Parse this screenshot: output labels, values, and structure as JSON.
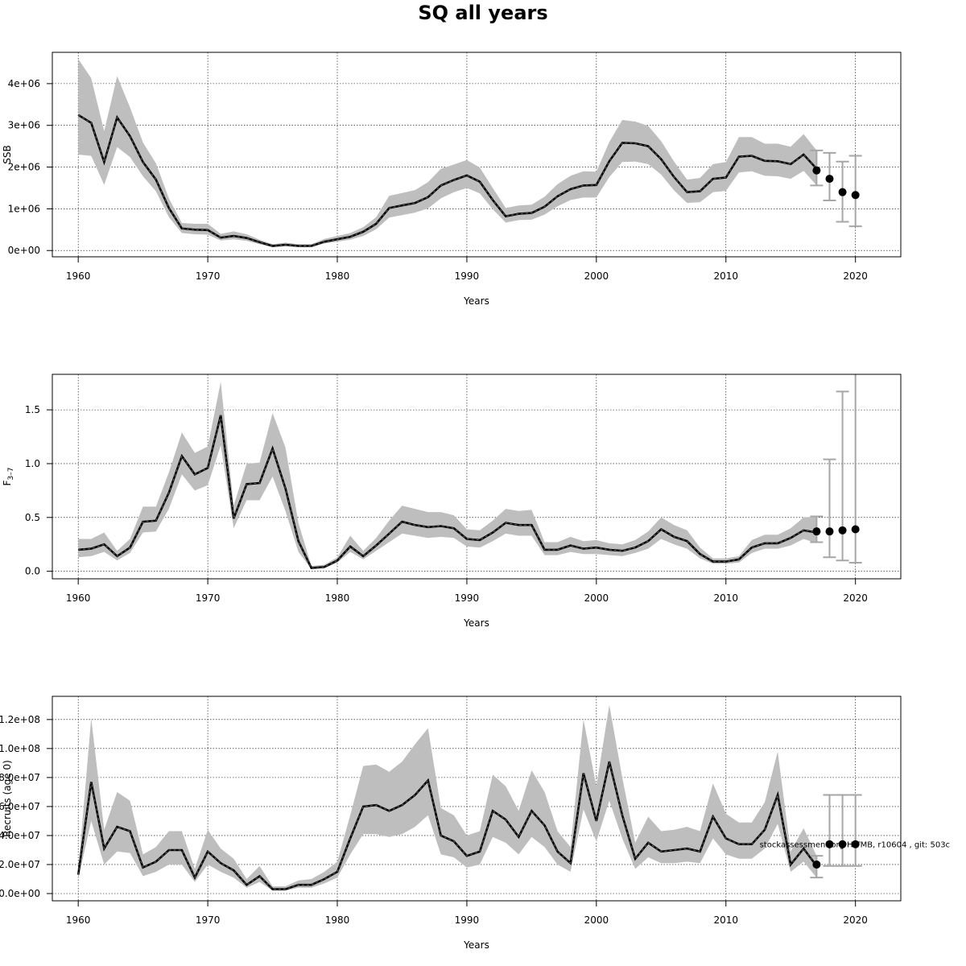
{
  "title": "SQ all years",
  "chart_data": [
    {
      "type": "line",
      "ylabel": "SSB",
      "xlabel": "Years",
      "xlim": [
        1958,
        2023.5
      ],
      "ylim": [
        -150000,
        4750000
      ],
      "x_ticks": [
        1960,
        1970,
        1980,
        1990,
        2000,
        2010,
        2020
      ],
      "x_tick_labels": [
        "1960",
        "1970",
        "1980",
        "1990",
        "2000",
        "2010",
        "2020"
      ],
      "y_ticks": [
        0,
        1000000,
        2000000,
        3000000,
        4000000
      ],
      "y_tick_labels": [
        "0e+00",
        "1e+06",
        "2e+06",
        "3e+06",
        "4e+06"
      ],
      "grid": true,
      "series": [
        {
          "name": "estimate",
          "x": [
            1960,
            1961,
            1962,
            1963,
            1964,
            1965,
            1966,
            1967,
            1968,
            1969,
            1970,
            1971,
            1972,
            1973,
            1974,
            1975,
            1976,
            1977,
            1978,
            1979,
            1980,
            1981,
            1982,
            1983,
            1984,
            1985,
            1986,
            1987,
            1988,
            1989,
            1990,
            1991,
            1992,
            1993,
            1994,
            1995,
            1996,
            1997,
            1998,
            1999,
            2000,
            2001,
            2002,
            2003,
            2004,
            2005,
            2006,
            2007,
            2008,
            2009,
            2010,
            2011,
            2012,
            2013,
            2014,
            2015,
            2016,
            2017
          ],
          "values": [
            3250000,
            3060000,
            2120000,
            3190000,
            2740000,
            2120000,
            1700000,
            1020000,
            530000,
            500000,
            490000,
            310000,
            350000,
            300000,
            200000,
            110000,
            140000,
            110000,
            110000,
            210000,
            270000,
            330000,
            450000,
            640000,
            1020000,
            1080000,
            1140000,
            1280000,
            1560000,
            1690000,
            1800000,
            1650000,
            1210000,
            820000,
            880000,
            900000,
            1050000,
            1300000,
            1470000,
            1560000,
            1570000,
            2140000,
            2580000,
            2570000,
            2500000,
            2190000,
            1760000,
            1400000,
            1420000,
            1720000,
            1750000,
            2250000,
            2270000,
            2150000,
            2140000,
            2070000,
            2300000,
            1960000
          ],
          "lower": [
            2300000,
            2270000,
            1570000,
            2480000,
            2240000,
            1780000,
            1420000,
            800000,
            420000,
            390000,
            380000,
            240000,
            270000,
            230000,
            150000,
            80000,
            100000,
            80000,
            80000,
            170000,
            210000,
            260000,
            350000,
            510000,
            790000,
            850000,
            910000,
            1010000,
            1250000,
            1400000,
            1500000,
            1370000,
            990000,
            670000,
            730000,
            740000,
            860000,
            1060000,
            1210000,
            1270000,
            1270000,
            1760000,
            2120000,
            2130000,
            2070000,
            1820000,
            1440000,
            1140000,
            1160000,
            1400000,
            1430000,
            1870000,
            1900000,
            1790000,
            1780000,
            1720000,
            1910000,
            1560000
          ],
          "upper": [
            4590000,
            4130000,
            2860000,
            4180000,
            3430000,
            2590000,
            2090000,
            1250000,
            660000,
            640000,
            640000,
            400000,
            460000,
            390000,
            260000,
            150000,
            190000,
            150000,
            150000,
            280000,
            350000,
            420000,
            560000,
            800000,
            1310000,
            1380000,
            1450000,
            1640000,
            1960000,
            2060000,
            2170000,
            1990000,
            1500000,
            1020000,
            1080000,
            1100000,
            1290000,
            1590000,
            1790000,
            1900000,
            1890000,
            2600000,
            3130000,
            3090000,
            2990000,
            2620000,
            2130000,
            1700000,
            1740000,
            2070000,
            2120000,
            2720000,
            2720000,
            2560000,
            2560000,
            2490000,
            2790000,
            2400000
          ]
        }
      ],
      "forecast": {
        "x": [
          2017,
          2018,
          2019,
          2020
        ],
        "values": [
          1920000,
          1720000,
          1400000,
          1330000
        ],
        "lower": [
          1560000,
          1200000,
          690000,
          580000
        ],
        "upper": [
          2400000,
          2340000,
          2130000,
          2270000
        ]
      }
    },
    {
      "type": "line",
      "ylabel": "F3–7",
      "ylabel_main": "F",
      "ylabel_sub": "3–7",
      "xlabel": "Years",
      "xlim": [
        1958,
        2023.5
      ],
      "ylim": [
        -0.07,
        1.83
      ],
      "x_ticks": [
        1960,
        1970,
        1980,
        1990,
        2000,
        2010,
        2020
      ],
      "x_tick_labels": [
        "1960",
        "1970",
        "1980",
        "1990",
        "2000",
        "2010",
        "2020"
      ],
      "y_ticks": [
        0,
        0.5,
        1.0,
        1.5
      ],
      "y_tick_labels": [
        "0.0",
        "0.5",
        "1.0",
        "1.5"
      ],
      "grid": true,
      "series": [
        {
          "name": "estimate",
          "x": [
            1960,
            1961,
            1962,
            1963,
            1964,
            1965,
            1966,
            1967,
            1968,
            1969,
            1970,
            1971,
            1972,
            1973,
            1974,
            1975,
            1976,
            1977,
            1978,
            1979,
            1980,
            1981,
            1982,
            1983,
            1984,
            1985,
            1986,
            1987,
            1988,
            1989,
            1990,
            1991,
            1992,
            1993,
            1994,
            1995,
            1996,
            1997,
            1998,
            1999,
            2000,
            2001,
            2002,
            2003,
            2004,
            2005,
            2006,
            2007,
            2008,
            2009,
            2010,
            2011,
            2012,
            2013,
            2014,
            2015,
            2016,
            2017
          ],
          "values": [
            0.2,
            0.21,
            0.25,
            0.14,
            0.22,
            0.46,
            0.47,
            0.73,
            1.07,
            0.9,
            0.96,
            1.45,
            0.49,
            0.81,
            0.82,
            1.14,
            0.77,
            0.28,
            0.03,
            0.04,
            0.1,
            0.23,
            0.14,
            0.24,
            0.35,
            0.46,
            0.43,
            0.41,
            0.42,
            0.4,
            0.3,
            0.29,
            0.36,
            0.45,
            0.43,
            0.43,
            0.2,
            0.2,
            0.24,
            0.21,
            0.22,
            0.2,
            0.19,
            0.22,
            0.28,
            0.39,
            0.32,
            0.28,
            0.16,
            0.09,
            0.09,
            0.11,
            0.22,
            0.26,
            0.26,
            0.31,
            0.38,
            0.36
          ],
          "lower": [
            0.13,
            0.14,
            0.18,
            0.1,
            0.17,
            0.36,
            0.37,
            0.58,
            0.9,
            0.75,
            0.8,
            1.17,
            0.4,
            0.66,
            0.66,
            0.88,
            0.56,
            0.18,
            0.02,
            0.03,
            0.08,
            0.18,
            0.11,
            0.19,
            0.27,
            0.35,
            0.33,
            0.31,
            0.32,
            0.31,
            0.23,
            0.22,
            0.28,
            0.35,
            0.33,
            0.33,
            0.15,
            0.15,
            0.18,
            0.16,
            0.16,
            0.15,
            0.14,
            0.17,
            0.21,
            0.3,
            0.25,
            0.21,
            0.12,
            0.07,
            0.07,
            0.08,
            0.17,
            0.21,
            0.21,
            0.24,
            0.3,
            0.26
          ],
          "upper": [
            0.3,
            0.3,
            0.36,
            0.19,
            0.3,
            0.6,
            0.6,
            0.92,
            1.29,
            1.1,
            1.16,
            1.76,
            0.61,
            1.0,
            1.01,
            1.47,
            1.15,
            0.45,
            0.05,
            0.06,
            0.13,
            0.33,
            0.19,
            0.31,
            0.47,
            0.61,
            0.58,
            0.55,
            0.55,
            0.52,
            0.39,
            0.38,
            0.47,
            0.58,
            0.56,
            0.57,
            0.27,
            0.27,
            0.32,
            0.28,
            0.29,
            0.26,
            0.25,
            0.29,
            0.37,
            0.5,
            0.43,
            0.38,
            0.22,
            0.12,
            0.12,
            0.14,
            0.29,
            0.34,
            0.34,
            0.4,
            0.5,
            0.51
          ]
        }
      ],
      "forecast": {
        "x": [
          2017,
          2018,
          2019,
          2020
        ],
        "values": [
          0.37,
          0.37,
          0.38,
          0.39
        ],
        "lower": [
          0.27,
          0.13,
          0.1,
          0.08
        ],
        "upper": [
          0.51,
          1.04,
          1.67,
          1.85
        ]
      }
    },
    {
      "type": "line",
      "ylabel": "Recruits (age 0)",
      "xlabel": "Years",
      "xlim": [
        1958,
        2023.5
      ],
      "ylim": [
        -5000000,
        136000000
      ],
      "x_ticks": [
        1960,
        1970,
        1980,
        1990,
        2000,
        2010,
        2020
      ],
      "x_tick_labels": [
        "1960",
        "1970",
        "1980",
        "1990",
        "2000",
        "2010",
        "2020"
      ],
      "y_ticks": [
        0,
        20000000,
        40000000,
        60000000,
        80000000,
        100000000,
        120000000
      ],
      "y_tick_labels": [
        "0.0e+00",
        "2.0e+07",
        "4.0e+07",
        "6.0e+07",
        "8.0e+07",
        "1.0e+08",
        "1.2e+08"
      ],
      "grid": true,
      "annotation": "stockassessment.org HITMB, r10604 , git: 503c",
      "series": [
        {
          "name": "estimate",
          "x": [
            1960,
            1961,
            1962,
            1963,
            1964,
            1965,
            1966,
            1967,
            1968,
            1969,
            1970,
            1971,
            1972,
            1973,
            1974,
            1975,
            1976,
            1977,
            1978,
            1979,
            1980,
            1981,
            1982,
            1983,
            1984,
            1985,
            1986,
            1987,
            1988,
            1989,
            1990,
            1991,
            1992,
            1993,
            1994,
            1995,
            1996,
            1997,
            1998,
            1999,
            2000,
            2001,
            2002,
            2003,
            2004,
            2005,
            2006,
            2007,
            2008,
            2009,
            2010,
            2011,
            2012,
            2013,
            2014,
            2015,
            2016,
            2017
          ],
          "values": [
            13000000,
            77000000,
            31000000,
            46000000,
            43000000,
            18000000,
            22000000,
            30000000,
            30000000,
            11000000,
            29000000,
            21000000,
            16000000,
            6000000,
            12000000,
            3000000,
            3000000,
            6000000,
            6000000,
            10000000,
            15000000,
            38000000,
            60000000,
            61000000,
            57000000,
            61000000,
            68000000,
            78000000,
            40000000,
            36000000,
            26000000,
            29000000,
            57000000,
            51000000,
            39000000,
            57000000,
            47000000,
            29000000,
            21000000,
            83000000,
            50000000,
            91000000,
            54000000,
            24000000,
            35000000,
            29000000,
            30000000,
            31000000,
            29000000,
            53000000,
            38000000,
            34000000,
            34000000,
            44000000,
            68000000,
            20000000,
            31000000,
            19000000
          ],
          "lower": [
            10000000,
            50000000,
            20000000,
            29000000,
            28000000,
            12000000,
            15000000,
            20000000,
            20000000,
            8000000,
            20000000,
            15000000,
            11000000,
            4000000,
            8000000,
            2000000,
            2000000,
            4000000,
            4000000,
            7000000,
            11000000,
            27000000,
            41000000,
            41000000,
            39000000,
            41000000,
            46000000,
            54000000,
            27000000,
            25000000,
            18000000,
            20000000,
            39000000,
            35000000,
            27000000,
            39000000,
            32000000,
            20000000,
            15000000,
            58000000,
            36000000,
            64000000,
            38000000,
            17000000,
            25000000,
            21000000,
            21000000,
            22000000,
            21000000,
            38000000,
            27000000,
            24000000,
            24000000,
            31000000,
            48000000,
            15000000,
            22000000,
            11000000
          ],
          "upper": [
            16000000,
            121000000,
            44000000,
            70000000,
            64000000,
            27000000,
            32000000,
            43000000,
            43000000,
            17000000,
            44000000,
            31000000,
            24000000,
            10000000,
            19000000,
            5000000,
            5000000,
            9000000,
            10000000,
            15000000,
            22000000,
            54000000,
            88000000,
            89000000,
            84000000,
            91000000,
            103000000,
            114000000,
            59000000,
            54000000,
            40000000,
            43000000,
            82000000,
            74000000,
            57000000,
            85000000,
            70000000,
            43000000,
            32000000,
            120000000,
            74000000,
            130000000,
            80000000,
            35000000,
            53000000,
            43000000,
            44000000,
            46000000,
            43000000,
            76000000,
            55000000,
            49000000,
            49000000,
            63000000,
            98000000,
            29000000,
            45000000,
            26000000
          ]
        }
      ],
      "forecast": {
        "x": [
          2017,
          2018,
          2019,
          2020
        ],
        "values": [
          20000000,
          34000000,
          34000000,
          34000000
        ],
        "lower": [
          11000000,
          19000000,
          19000000,
          19000000
        ],
        "upper": [
          26000000,
          68000000,
          68000000,
          68000000
        ]
      }
    }
  ]
}
